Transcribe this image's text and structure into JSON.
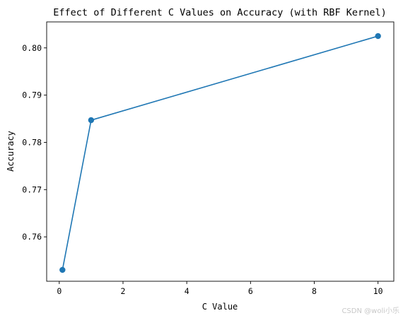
{
  "chart_data": {
    "type": "line",
    "title": "Effect of Different C Values on Accuracy (with RBF Kernel)",
    "xlabel": "C Value",
    "ylabel": "Accuracy",
    "x": [
      0.1,
      1,
      10
    ],
    "series": [
      {
        "values": [
          0.753,
          0.7847,
          0.8025
        ],
        "color": "#1f77b4"
      }
    ],
    "xlim": [
      -0.395,
      10.495
    ],
    "ylim": [
      0.7506,
      0.8055
    ],
    "xticks": [
      0,
      2,
      4,
      6,
      8,
      10
    ],
    "xtick_labels": [
      "0",
      "2",
      "4",
      "6",
      "8",
      "10"
    ],
    "yticks": [
      0.76,
      0.77,
      0.78,
      0.79,
      0.8
    ],
    "ytick_labels": [
      "0.76",
      "0.77",
      "0.78",
      "0.79",
      "0.80"
    ],
    "grid": false,
    "markers": true
  },
  "watermark": "CSDN @woli小乐"
}
